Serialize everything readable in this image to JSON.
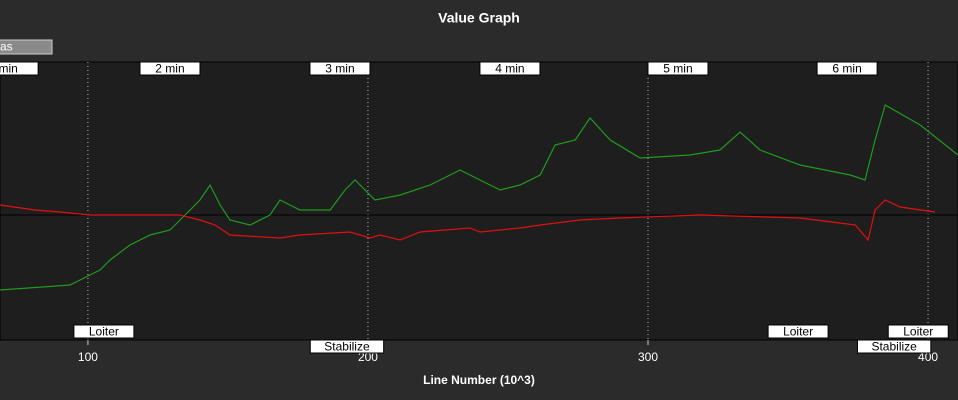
{
  "chart_data": {
    "type": "line",
    "title": "Value Graph",
    "x_label": "Line Number (10^3)",
    "xlim": [
      68.6,
      410.7
    ],
    "xticks": [
      100,
      200,
      300,
      400
    ],
    "ylim": [
      -1.25,
      1.53
    ],
    "hline": 0,
    "grid": true,
    "series": [
      {
        "name": "as",
        "color": "#1f9a1f",
        "x": [
          68.6,
          93.6,
          97.2,
          104.3,
          107.9,
          115.0,
          122.2,
          129.3,
          132.9,
          136.5,
          140.0,
          143.6,
          147.2,
          150.7,
          157.9,
          165.0,
          168.6,
          175.7,
          186.5,
          191.8,
          195.4,
          202.5,
          211.5,
          222.2,
          232.9,
          240.0,
          247.2,
          254.3,
          261.5,
          266.8,
          274.0,
          279.3,
          286.5,
          297.2,
          315.0,
          325.7,
          332.9,
          340.0,
          354.3,
          372.2,
          377.5,
          381.1,
          384.7,
          397.2,
          410.7
        ],
        "values": [
          -0.75,
          -0.7,
          -0.65,
          -0.55,
          -0.45,
          -0.3,
          -0.2,
          -0.15,
          -0.05,
          0.05,
          0.15,
          0.3,
          0.1,
          -0.05,
          -0.1,
          0,
          0.15,
          0.05,
          0.05,
          0.25,
          0.35,
          0.15,
          0.2,
          0.3,
          0.45,
          0.35,
          0.25,
          0.3,
          0.4,
          0.7,
          0.75,
          0.97,
          0.75,
          0.57,
          0.6,
          0.65,
          0.83,
          0.65,
          0.5,
          0.4,
          0.35,
          0.75,
          1.1,
          0.9,
          0.6
        ]
      },
      {
        "color": "#e01010",
        "x": [
          68.6,
          81.1,
          90.0,
          100.7,
          132.9,
          140.0,
          145.4,
          150.7,
          168.6,
          175.7,
          193.6,
          200.7,
          204.3,
          211.5,
          218.6,
          236.5,
          240.0,
          254.3,
          261.5,
          275.7,
          290.0,
          318.6,
          354.3,
          374.0,
          378.6,
          381.1,
          384.7,
          390.0,
          402.5
        ],
        "values": [
          0.1,
          0.05,
          0.03,
          0,
          0,
          -0.05,
          -0.1,
          -0.2,
          -0.23,
          -0.2,
          -0.17,
          -0.23,
          -0.2,
          -0.25,
          -0.17,
          -0.13,
          -0.17,
          -0.13,
          -0.1,
          -0.05,
          -0.03,
          0,
          -0.03,
          -0.1,
          -0.25,
          0.05,
          0.15,
          0.08,
          0.03
        ]
      }
    ],
    "time_markers": [
      {
        "x": 71.5,
        "label": "min"
      },
      {
        "x": 129.3,
        "label": "2 min"
      },
      {
        "x": 190.0,
        "label": "3 min"
      },
      {
        "x": 250.7,
        "label": "4 min"
      },
      {
        "x": 310.7,
        "label": "5 min"
      },
      {
        "x": 371.1,
        "label": "6 min"
      }
    ],
    "mode_markers": [
      {
        "x": 105.7,
        "label": "Loiter"
      },
      {
        "x": 192.5,
        "label": "Stabilize"
      },
      {
        "x": 353.6,
        "label": "Loiter"
      },
      {
        "x": 387.9,
        "label": "Stabilize"
      },
      {
        "x": 396.5,
        "label": "Loiter"
      }
    ]
  }
}
